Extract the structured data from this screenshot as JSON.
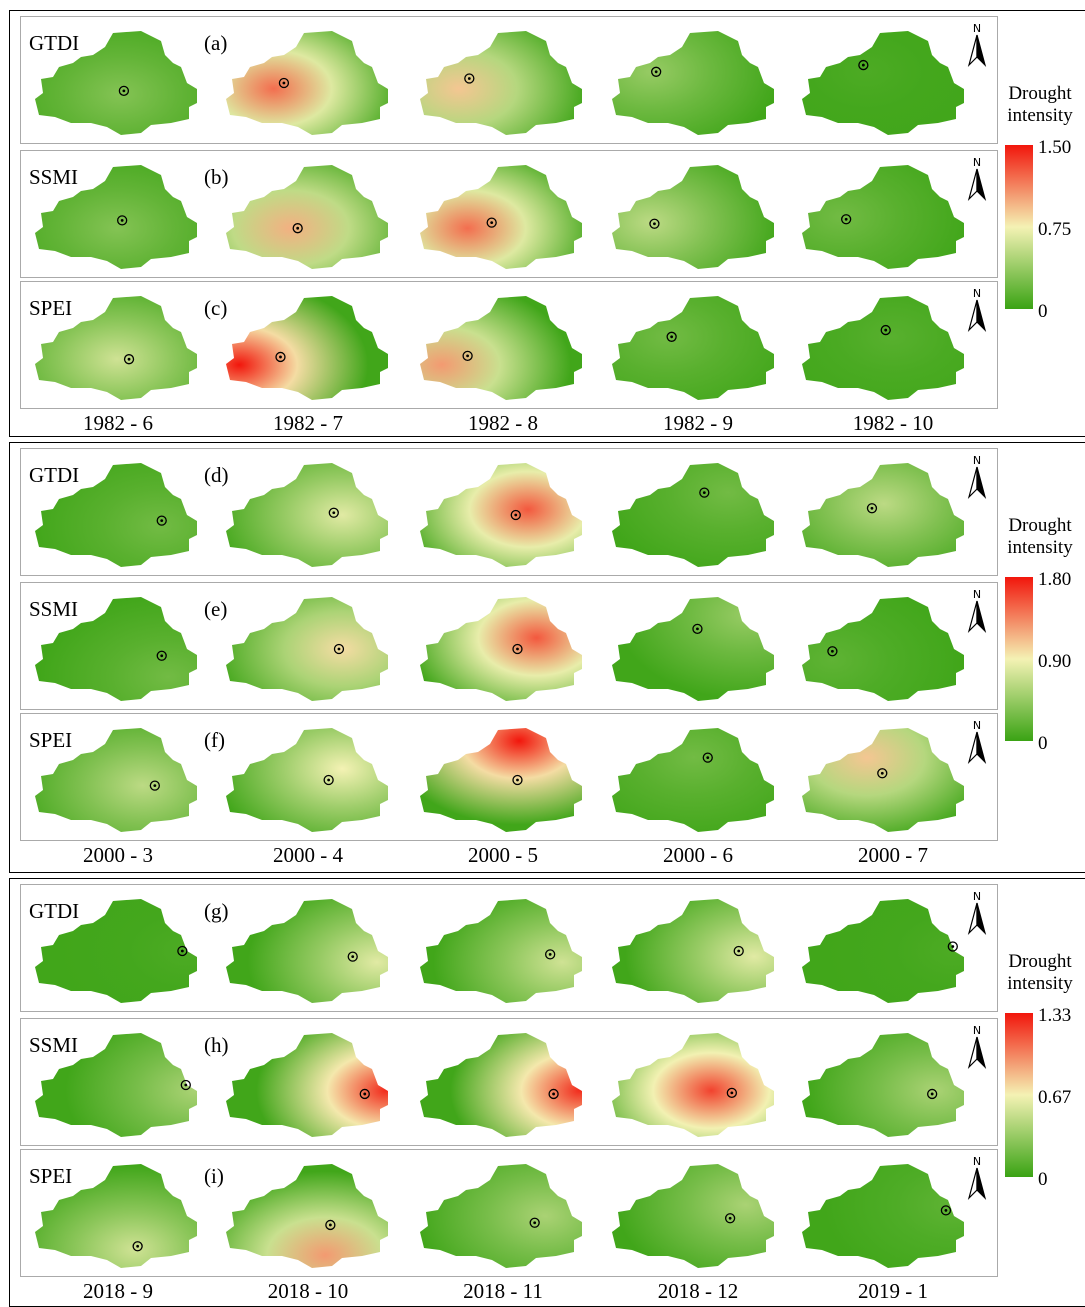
{
  "groups": [
    {
      "legend": {
        "title_line1": "Drought",
        "title_line2": "intensity",
        "max": "1.50",
        "mid": "0.75",
        "min": "0"
      },
      "dates": [
        "1982 - 6",
        "1982 - 7",
        "1982 - 8",
        "1982 - 9",
        "1982 - 10"
      ],
      "rows": [
        {
          "index": "GTDI",
          "panel": "(a)"
        },
        {
          "index": "SSMI",
          "panel": "(b)"
        },
        {
          "index": "SPEI",
          "panel": "(c)"
        }
      ]
    },
    {
      "legend": {
        "title_line1": "Drought",
        "title_line2": "intensity",
        "max": "1.80",
        "mid": "0.90",
        "min": "0"
      },
      "dates": [
        "2000 - 3",
        "2000 - 4",
        "2000 - 5",
        "2000 - 6",
        "2000 - 7"
      ],
      "rows": [
        {
          "index": "GTDI",
          "panel": "(d)"
        },
        {
          "index": "SSMI",
          "panel": "(e)"
        },
        {
          "index": "SPEI",
          "panel": "(f)"
        }
      ]
    },
    {
      "legend": {
        "title_line1": "Drought",
        "title_line2": "intensity",
        "max": "1.33",
        "mid": "0.67",
        "min": "0"
      },
      "dates": [
        "2018 - 9",
        "2018 - 10",
        "2018 - 11",
        "2018 - 12",
        "2019 - 1"
      ],
      "rows": [
        {
          "index": "GTDI",
          "panel": "(g)"
        },
        {
          "index": "SSMI",
          "panel": "(h)"
        },
        {
          "index": "SPEI",
          "panel": "(i)"
        }
      ]
    }
  ],
  "north_label": "N",
  "colors": {
    "low": "#3aa314",
    "mid": "#f4f2b4",
    "high": "#f2160c",
    "frame": "#000000",
    "row_border": "#aaaaaa"
  }
}
